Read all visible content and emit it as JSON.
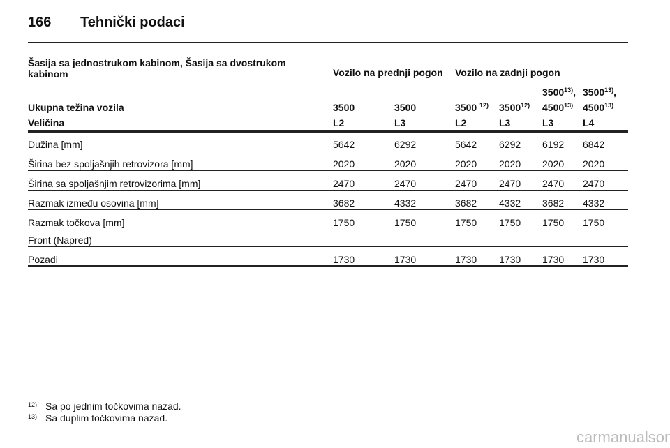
{
  "header": {
    "page_number": "166",
    "title": "Tehnički podaci"
  },
  "table": {
    "group_label": "Šasija sa jednostrukom kabinom, Šasija sa dvostrukom kabinom",
    "groups": [
      "Vozilo na prednji pogon",
      "Vozilo na zadnji pogon"
    ],
    "weight_label": "Ukupna težina vozila",
    "weights": [
      [
        {
          "text": "3500"
        }
      ],
      [
        {
          "text": "3500"
        }
      ],
      [
        {
          "text": "3500 ",
          "sup": "12)"
        }
      ],
      [
        {
          "text": "3500",
          "sup": "12)"
        }
      ],
      [
        {
          "text": "3500",
          "sup": "13)",
          "tail": ","
        },
        {
          "text": "4500",
          "sup": "13)"
        }
      ],
      [
        {
          "text": "3500",
          "sup": "13)",
          "tail": ","
        },
        {
          "text": "4500",
          "sup": "13)"
        }
      ]
    ],
    "size_label": "Veličina",
    "sizes": [
      "L2",
      "L3",
      "L2",
      "L3",
      "L3",
      "L4"
    ],
    "rows": [
      {
        "labels": [
          "Dužina [mm]"
        ],
        "values": [
          "5642",
          "6292",
          "5642",
          "6292",
          "6192",
          "6842"
        ]
      },
      {
        "labels": [
          "Širina bez spoljašnjih retrovizora [mm]"
        ],
        "values": [
          "2020",
          "2020",
          "2020",
          "2020",
          "2020",
          "2020"
        ]
      },
      {
        "labels": [
          "Širina sa spoljašnjim retrovizorima [mm]"
        ],
        "values": [
          "2470",
          "2470",
          "2470",
          "2470",
          "2470",
          "2470"
        ]
      },
      {
        "labels": [
          "Razmak između osovina [mm]"
        ],
        "values": [
          "3682",
          "4332",
          "3682",
          "4332",
          "3682",
          "4332"
        ]
      },
      {
        "labels": [
          "Razmak točkova [mm]",
          "Front (Napred)"
        ],
        "values": [
          "1750",
          "1750",
          "1750",
          "1750",
          "1750",
          "1750"
        ]
      },
      {
        "labels": [
          "Pozadi"
        ],
        "values": [
          "1730",
          "1730",
          "1730",
          "1730",
          "1730",
          "1730"
        ]
      }
    ]
  },
  "footnotes": [
    {
      "mark": "12)",
      "text": "Sa po jednim točkovima nazad."
    },
    {
      "mark": "13)",
      "text": "Sa duplim točkovima nazad."
    }
  ],
  "watermark": "carmanualsonline.info"
}
